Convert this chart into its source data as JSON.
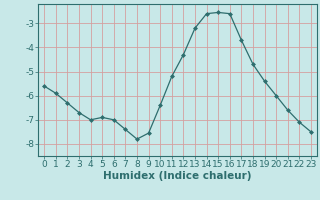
{
  "x": [
    0,
    1,
    2,
    3,
    4,
    5,
    6,
    7,
    8,
    9,
    10,
    11,
    12,
    13,
    14,
    15,
    16,
    17,
    18,
    19,
    20,
    21,
    22,
    23
  ],
  "y": [
    -5.6,
    -5.9,
    -6.3,
    -6.7,
    -7.0,
    -6.9,
    -7.0,
    -7.4,
    -7.8,
    -7.55,
    -6.4,
    -5.2,
    -4.3,
    -3.2,
    -2.6,
    -2.55,
    -2.6,
    -3.7,
    -4.7,
    -5.4,
    -6.0,
    -6.6,
    -7.1,
    -7.5
  ],
  "xlabel": "Humidex (Indice chaleur)",
  "bg_color": "#c8e8e8",
  "line_color": "#2e6e6e",
  "marker_color": "#2e6e6e",
  "grid_color": "#d4a0a0",
  "ylim": [
    -8.5,
    -2.2
  ],
  "yticks": [
    -8,
    -7,
    -6,
    -5,
    -4,
    -3
  ],
  "xticks": [
    0,
    1,
    2,
    3,
    4,
    5,
    6,
    7,
    8,
    9,
    10,
    11,
    12,
    13,
    14,
    15,
    16,
    17,
    18,
    19,
    20,
    21,
    22,
    23
  ],
  "axis_color": "#2e6e6e",
  "tick_fontsize": 6.5,
  "label_fontsize": 7.5
}
